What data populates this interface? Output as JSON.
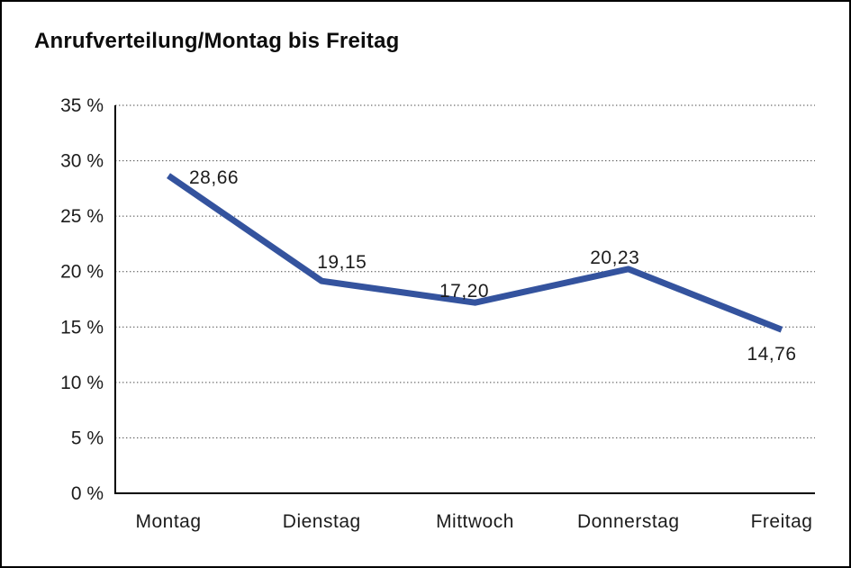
{
  "chart_data": {
    "type": "line",
    "title": "Anrufverteilung/Montag bis Freitag",
    "categories": [
      "Montag",
      "Dienstag",
      "Mittwoch",
      "Donnerstag",
      "Freitag"
    ],
    "values": [
      28.66,
      19.15,
      17.2,
      20.23,
      14.76
    ],
    "point_labels": [
      "28,66",
      "19,15",
      "17,20",
      "20,23",
      "14,76"
    ],
    "ytick_labels": [
      "0 %",
      "5 %",
      "10 %",
      "15 %",
      "20 %",
      "25 %",
      "30 %",
      "35 %"
    ],
    "ylim": [
      0,
      35
    ],
    "ytick_step": 5,
    "xlabel": "",
    "ylabel": "",
    "legend": "none",
    "grid": "horizontal-dotted",
    "line_color": "#34539E",
    "axis_color": "#000000",
    "gridline_color": "#4a4a4a",
    "text_color": "#1c1c1c"
  }
}
